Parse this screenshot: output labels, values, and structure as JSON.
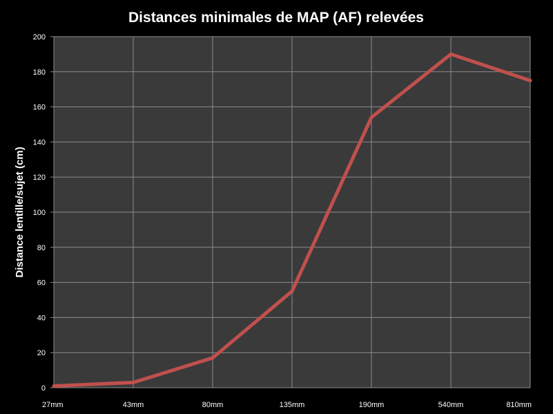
{
  "chart_data": {
    "type": "line",
    "title": "Distances minimales de MAP (AF) relevées",
    "xlabel": "",
    "ylabel": "Distance lentille/sujet (cm)",
    "categories": [
      "27mm",
      "43mm",
      "80mm",
      "135mm",
      "190mm",
      "540mm",
      "810mm"
    ],
    "series": [
      {
        "values": [
          1,
          3,
          17,
          55,
          154,
          190,
          175
        ],
        "color": "#c0504d"
      }
    ],
    "ylim": [
      0,
      200
    ],
    "yticks": [
      0,
      20,
      40,
      60,
      80,
      100,
      120,
      140,
      160,
      180,
      200
    ],
    "grid": true,
    "legend": "none"
  },
  "colors": {
    "background": "#000000",
    "plot_area": "#3a3a3a",
    "gridline": "#8c8c8c",
    "text": "#ffffff",
    "series_line": "#c0504d"
  }
}
